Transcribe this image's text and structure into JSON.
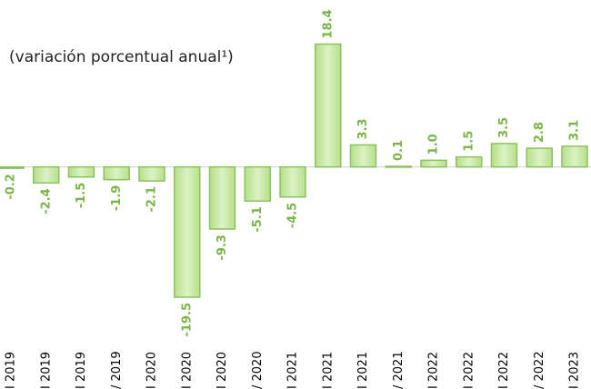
{
  "chart_data": {
    "type": "bar",
    "subtitle": "(variación porcentual anual¹)",
    "categories": [
      "I 2019",
      "I 2019",
      "I 2019",
      "/ 2019",
      "I 2020",
      "I 2020",
      "I 2020",
      "/ 2020",
      "I 2021",
      "I 2021",
      "I 2021",
      "/ 2021",
      "I 2022",
      "I 2022",
      "I 2022",
      "/ 2022",
      "I 2023"
    ],
    "values": [
      -0.2,
      -2.4,
      -1.5,
      -1.9,
      -2.1,
      -19.5,
      -9.3,
      -5.1,
      -4.5,
      18.4,
      3.3,
      0.1,
      1.0,
      1.5,
      3.5,
      2.8,
      3.1
    ],
    "value_labels": [
      "-0.2",
      "-2.4",
      "-1.5",
      "-1.9",
      "-2.1",
      "-19.5",
      "-9.3",
      "-5.1",
      "-4.5",
      "18.4",
      "3.3",
      "0.1",
      "1.0",
      "1.5",
      "3.5",
      "2.8",
      "3.1"
    ],
    "color": "#c8e8a4",
    "ylim": [
      -21,
      25
    ]
  }
}
